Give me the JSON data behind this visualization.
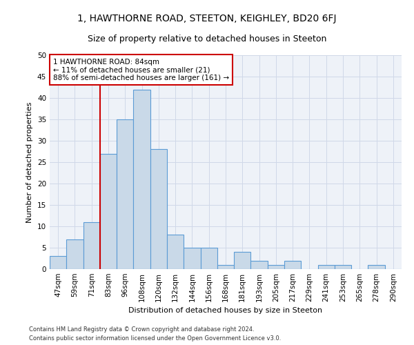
{
  "title": "1, HAWTHORNE ROAD, STEETON, KEIGHLEY, BD20 6FJ",
  "subtitle": "Size of property relative to detached houses in Steeton",
  "xlabel": "Distribution of detached houses by size in Steeton",
  "ylabel": "Number of detached properties",
  "footer_line1": "Contains HM Land Registry data © Crown copyright and database right 2024.",
  "footer_line2": "Contains public sector information licensed under the Open Government Licence v3.0.",
  "bin_labels": [
    "47sqm",
    "59sqm",
    "71sqm",
    "83sqm",
    "96sqm",
    "108sqm",
    "120sqm",
    "132sqm",
    "144sqm",
    "156sqm",
    "168sqm",
    "181sqm",
    "193sqm",
    "205sqm",
    "217sqm",
    "229sqm",
    "241sqm",
    "253sqm",
    "265sqm",
    "278sqm",
    "290sqm"
  ],
  "bar_heights": [
    3,
    7,
    11,
    27,
    35,
    42,
    28,
    8,
    5,
    5,
    1,
    4,
    2,
    1,
    2,
    0,
    1,
    1,
    0,
    1,
    0
  ],
  "bar_color": "#c9d9e8",
  "bar_edge_color": "#5b9bd5",
  "vline_index": 3,
  "annotation_title": "1 HAWTHORNE ROAD: 84sqm",
  "annotation_line2": "← 11% of detached houses are smaller (21)",
  "annotation_line3": "88% of semi-detached houses are larger (161) →",
  "annotation_box_color": "#ffffff",
  "annotation_box_edge_color": "#cc0000",
  "vline_color": "#cc0000",
  "ylim": [
    0,
    50
  ],
  "yticks": [
    0,
    5,
    10,
    15,
    20,
    25,
    30,
    35,
    40,
    45,
    50
  ],
  "grid_color": "#d0d8e8",
  "bg_color": "#eef2f8",
  "title_fontsize": 10,
  "subtitle_fontsize": 9,
  "axis_label_fontsize": 8,
  "tick_fontsize": 7.5,
  "annotation_fontsize": 7.5,
  "footer_fontsize": 6
}
